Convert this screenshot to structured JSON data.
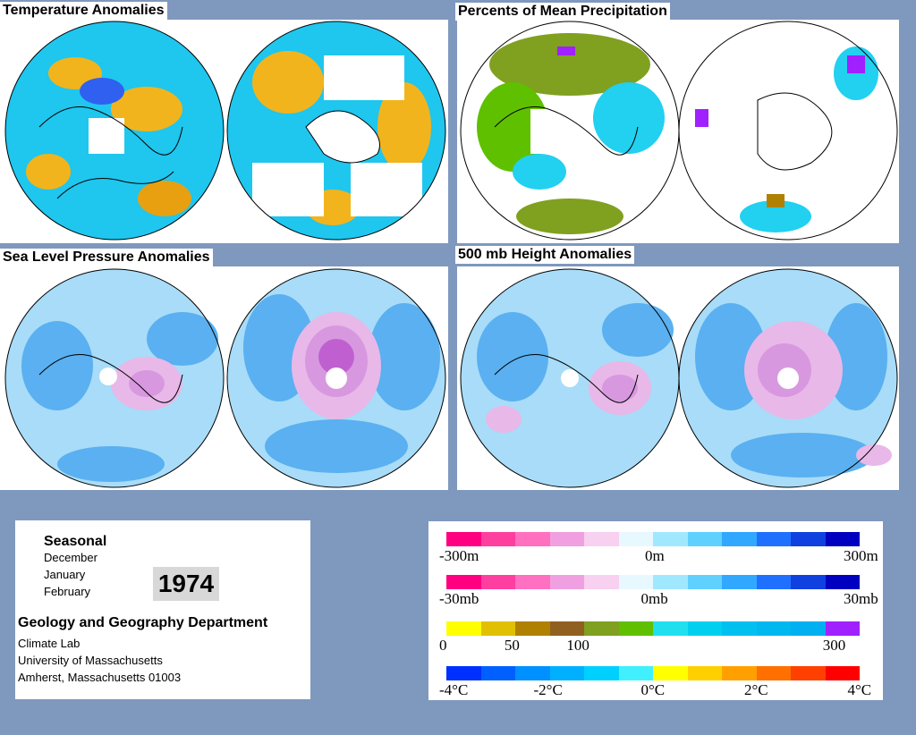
{
  "panels": {
    "temperature": {
      "title": "Temperature Anomalies"
    },
    "precipitation": {
      "title": "Percents of Mean Precipitation"
    },
    "slp": {
      "title": "Sea Level Pressure Anomalies"
    },
    "height": {
      "title": "500 mb Height Anomalies"
    }
  },
  "info": {
    "season": "Seasonal",
    "months": [
      "December",
      "January",
      "February"
    ],
    "year": "1974",
    "department": "Geology and Geography Department",
    "address": [
      "Climate Lab",
      "University of Massachusetts",
      "Amherst, Massachusetts 01003"
    ]
  },
  "legends": [
    {
      "name": "height-scale",
      "colors": [
        "#ff0080",
        "#ff3fa0",
        "#ff70c0",
        "#f0a0e0",
        "#f8d0f0",
        "#e8f8ff",
        "#a0e8ff",
        "#60d0ff",
        "#30a8ff",
        "#2070ff",
        "#1040e0",
        "#0000c0"
      ],
      "ticks": [
        "-300m",
        "0m",
        "300m"
      ],
      "tick_pos": [
        0,
        0.5,
        1
      ]
    },
    {
      "name": "pressure-scale",
      "colors": [
        "#ff0080",
        "#ff3fa0",
        "#ff70c0",
        "#f0a0e0",
        "#f8d0f0",
        "#e8f8ff",
        "#a0e8ff",
        "#60d0ff",
        "#30a8ff",
        "#2070ff",
        "#1040e0",
        "#0000c0"
      ],
      "ticks": [
        "-30mb",
        "0mb",
        "30mb"
      ],
      "tick_pos": [
        0,
        0.5,
        1
      ]
    },
    {
      "name": "precipitation-scale",
      "colors": [
        "#ffff00",
        "#e0c000",
        "#b08000",
        "#906020",
        "#80a020",
        "#60c000",
        "#20e0f0",
        "#00d0f0",
        "#00c0f0",
        "#00b8f0",
        "#00b0f0",
        "#a020ff"
      ],
      "ticks": [
        "0",
        "50",
        "100",
        "300"
      ],
      "tick_pos": [
        0,
        0.16,
        0.32,
        0.94
      ]
    },
    {
      "name": "temperature-scale",
      "colors": [
        "#0030ff",
        "#0060ff",
        "#0090ff",
        "#00b0ff",
        "#00d0ff",
        "#40f0ff",
        "#ffff00",
        "#ffd000",
        "#ffa000",
        "#ff7000",
        "#ff4000",
        "#ff0000"
      ],
      "ticks": [
        "-4°C",
        "-2°C",
        "0°C",
        "2°C",
        "4°C"
      ],
      "tick_pos": [
        0,
        0.25,
        0.5,
        0.75,
        1
      ]
    }
  ],
  "colors": {
    "background": "#7f98be",
    "anomaly_cool": "#1fc6ee",
    "anomaly_warm": "#f2b41c",
    "pressure_low": "#e8b8e8",
    "pressure_high": "#5ab0f0"
  }
}
